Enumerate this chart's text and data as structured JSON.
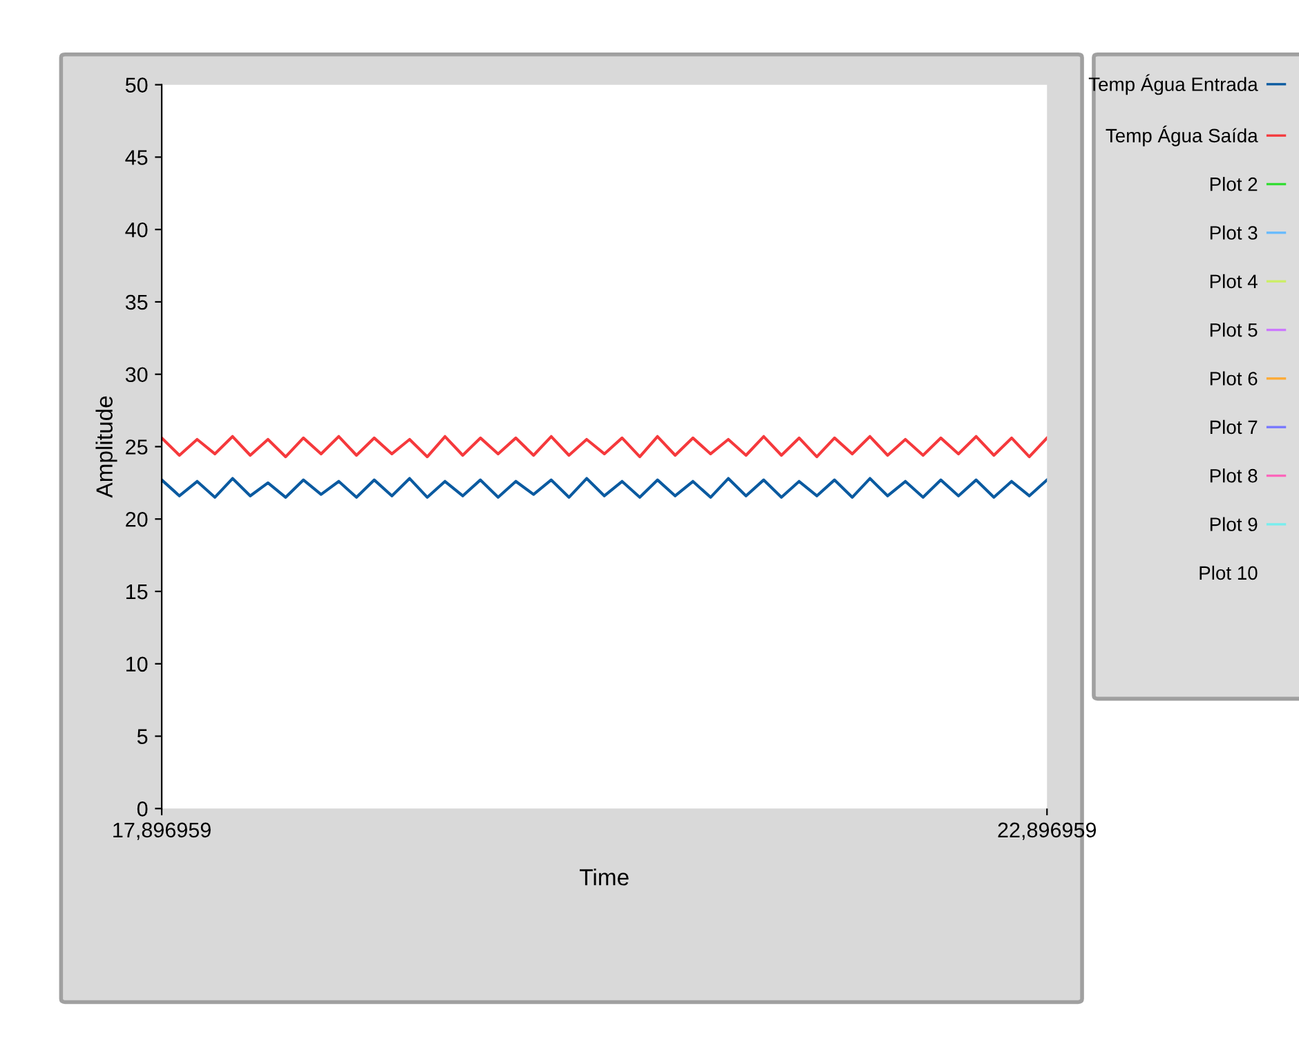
{
  "chart_data": {
    "type": "line",
    "xlabel": "Time",
    "ylabel": "Amplitude",
    "categories": [
      "17,896959",
      null,
      null,
      null,
      null,
      null,
      null,
      null,
      null,
      null,
      null,
      null,
      null,
      null,
      null,
      null,
      null,
      null,
      null,
      null,
      null,
      null,
      null,
      null,
      null,
      null,
      null,
      null,
      null,
      null,
      null,
      null,
      null,
      null,
      null,
      null,
      null,
      null,
      null,
      null,
      null,
      null,
      null,
      null,
      null,
      null,
      null,
      null,
      null,
      null,
      "22,896959"
    ],
    "ylim": [
      0,
      50
    ],
    "yticks": [
      0,
      5,
      10,
      15,
      20,
      25,
      30,
      35,
      40,
      45,
      50
    ],
    "grid": false,
    "legend": "right",
    "marker": "none",
    "line_style": "solid",
    "series": [
      {
        "name": "Temp Água Entrada",
        "color": "#0a5aa0",
        "values": [
          22.7,
          21.6,
          22.6,
          21.5,
          22.8,
          21.6,
          22.5,
          21.5,
          22.7,
          21.7,
          22.6,
          21.5,
          22.7,
          21.6,
          22.8,
          21.5,
          22.6,
          21.6,
          22.7,
          21.5,
          22.6,
          21.7,
          22.7,
          21.5,
          22.8,
          21.6,
          22.6,
          21.5,
          22.7,
          21.6,
          22.6,
          21.5,
          22.8,
          21.6,
          22.7,
          21.5,
          22.6,
          21.6,
          22.7,
          21.5,
          22.8,
          21.6,
          22.6,
          21.5,
          22.7,
          21.6,
          22.7,
          21.5,
          22.6,
          21.6,
          22.7
        ]
      },
      {
        "name": "Temp Água Saída",
        "color": "#f5393c",
        "values": [
          25.6,
          24.4,
          25.5,
          24.5,
          25.7,
          24.4,
          25.5,
          24.3,
          25.6,
          24.5,
          25.7,
          24.4,
          25.6,
          24.5,
          25.5,
          24.3,
          25.7,
          24.4,
          25.6,
          24.5,
          25.6,
          24.4,
          25.7,
          24.4,
          25.5,
          24.5,
          25.6,
          24.3,
          25.7,
          24.4,
          25.6,
          24.5,
          25.5,
          24.4,
          25.7,
          24.4,
          25.6,
          24.3,
          25.6,
          24.5,
          25.7,
          24.4,
          25.5,
          24.4,
          25.6,
          24.5,
          25.7,
          24.4,
          25.6,
          24.3,
          25.6
        ]
      },
      {
        "name": "Plot 2",
        "color": "#33dd33",
        "values": [
          null,
          null,
          null,
          null,
          null,
          null,
          null,
          null,
          null,
          null,
          null,
          null,
          null,
          null,
          null,
          null,
          null,
          null,
          null,
          null,
          null,
          null,
          null,
          null,
          null,
          null,
          null,
          null,
          null,
          null,
          null,
          null,
          null,
          null,
          null,
          null,
          null,
          null,
          null,
          null,
          null,
          null,
          null,
          null,
          null,
          null,
          null,
          null,
          null,
          null,
          null
        ]
      },
      {
        "name": "Plot 3",
        "color": "#66bbff",
        "values": [
          null,
          null,
          null,
          null,
          null,
          null,
          null,
          null,
          null,
          null,
          null,
          null,
          null,
          null,
          null,
          null,
          null,
          null,
          null,
          null,
          null,
          null,
          null,
          null,
          null,
          null,
          null,
          null,
          null,
          null,
          null,
          null,
          null,
          null,
          null,
          null,
          null,
          null,
          null,
          null,
          null,
          null,
          null,
          null,
          null,
          null,
          null,
          null,
          null,
          null,
          null
        ]
      },
      {
        "name": "Plot 4",
        "color": "#ccee66",
        "values": [
          null,
          null,
          null,
          null,
          null,
          null,
          null,
          null,
          null,
          null,
          null,
          null,
          null,
          null,
          null,
          null,
          null,
          null,
          null,
          null,
          null,
          null,
          null,
          null,
          null,
          null,
          null,
          null,
          null,
          null,
          null,
          null,
          null,
          null,
          null,
          null,
          null,
          null,
          null,
          null,
          null,
          null,
          null,
          null,
          null,
          null,
          null,
          null,
          null,
          null,
          null
        ]
      },
      {
        "name": "Plot 5",
        "color": "#cc77ff",
        "values": [
          null,
          null,
          null,
          null,
          null,
          null,
          null,
          null,
          null,
          null,
          null,
          null,
          null,
          null,
          null,
          null,
          null,
          null,
          null,
          null,
          null,
          null,
          null,
          null,
          null,
          null,
          null,
          null,
          null,
          null,
          null,
          null,
          null,
          null,
          null,
          null,
          null,
          null,
          null,
          null,
          null,
          null,
          null,
          null,
          null,
          null,
          null,
          null,
          null,
          null,
          null
        ]
      },
      {
        "name": "Plot 6",
        "color": "#ffaa33",
        "values": [
          null,
          null,
          null,
          null,
          null,
          null,
          null,
          null,
          null,
          null,
          null,
          null,
          null,
          null,
          null,
          null,
          null,
          null,
          null,
          null,
          null,
          null,
          null,
          null,
          null,
          null,
          null,
          null,
          null,
          null,
          null,
          null,
          null,
          null,
          null,
          null,
          null,
          null,
          null,
          null,
          null,
          null,
          null,
          null,
          null,
          null,
          null,
          null,
          null,
          null,
          null
        ]
      },
      {
        "name": "Plot 7",
        "color": "#7777ff",
        "values": [
          null,
          null,
          null,
          null,
          null,
          null,
          null,
          null,
          null,
          null,
          null,
          null,
          null,
          null,
          null,
          null,
          null,
          null,
          null,
          null,
          null,
          null,
          null,
          null,
          null,
          null,
          null,
          null,
          null,
          null,
          null,
          null,
          null,
          null,
          null,
          null,
          null,
          null,
          null,
          null,
          null,
          null,
          null,
          null,
          null,
          null,
          null,
          null,
          null,
          null,
          null
        ]
      },
      {
        "name": "Plot 8",
        "color": "#ff66bb",
        "values": [
          null,
          null,
          null,
          null,
          null,
          null,
          null,
          null,
          null,
          null,
          null,
          null,
          null,
          null,
          null,
          null,
          null,
          null,
          null,
          null,
          null,
          null,
          null,
          null,
          null,
          null,
          null,
          null,
          null,
          null,
          null,
          null,
          null,
          null,
          null,
          null,
          null,
          null,
          null,
          null,
          null,
          null,
          null,
          null,
          null,
          null,
          null,
          null,
          null,
          null,
          null
        ]
      },
      {
        "name": "Plot 9",
        "color": "#77eeee",
        "values": [
          null,
          null,
          null,
          null,
          null,
          null,
          null,
          null,
          null,
          null,
          null,
          null,
          null,
          null,
          null,
          null,
          null,
          null,
          null,
          null,
          null,
          null,
          null,
          null,
          null,
          null,
          null,
          null,
          null,
          null,
          null,
          null,
          null,
          null,
          null,
          null,
          null,
          null,
          null,
          null,
          null,
          null,
          null,
          null,
          null,
          null,
          null,
          null,
          null,
          null,
          null
        ]
      },
      {
        "name": "Plot 10",
        "color": null,
        "values": [
          null,
          null,
          null,
          null,
          null,
          null,
          null,
          null,
          null,
          null,
          null,
          null,
          null,
          null,
          null,
          null,
          null,
          null,
          null,
          null,
          null,
          null,
          null,
          null,
          null,
          null,
          null,
          null,
          null,
          null,
          null,
          null,
          null,
          null,
          null,
          null,
          null,
          null,
          null,
          null,
          null,
          null,
          null,
          null,
          null,
          null,
          null,
          null,
          null,
          null,
          null
        ]
      }
    ]
  }
}
